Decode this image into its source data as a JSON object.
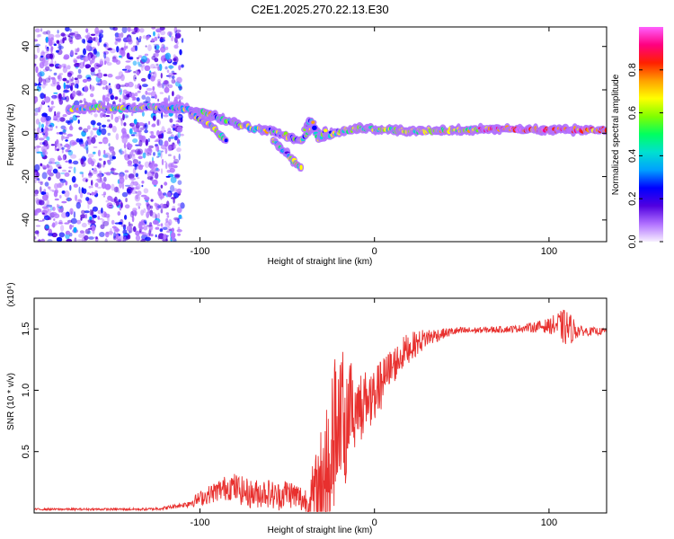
{
  "title": "C2E1.2025.270.22.13.E30",
  "chart_data": [
    {
      "type": "heatmap",
      "title": "C2E1.2025.270.22.13.E30",
      "xlabel": "Height of straight line (km)",
      "ylabel": "Frequency (Hz)",
      "xlim": [
        -195,
        133
      ],
      "ylim": [
        -50,
        49
      ],
      "x_ticks": [
        -100,
        0,
        100
      ],
      "x_tick_labels": [
        "-100",
        "0",
        "100"
      ],
      "y_ticks": [
        -40,
        -20,
        0,
        20,
        40
      ],
      "y_tick_labels": [
        "-40",
        "-20",
        "0",
        "20",
        "40"
      ],
      "noise_region_x": [
        -195,
        -110
      ],
      "ridge": {
        "x": [
          -175,
          -160,
          -145,
          -130,
          -115,
          -100,
          -88,
          -78,
          -68,
          -58,
          -48,
          -42,
          -36,
          -30,
          -24,
          -18,
          -10,
          0,
          20,
          50,
          80,
          100,
          133
        ],
        "y": [
          11,
          12,
          11,
          12,
          12,
          10,
          7,
          4,
          2,
          1,
          -2,
          -4,
          3,
          -2,
          0,
          1,
          2,
          2,
          1,
          1.5,
          2,
          1.5,
          1.5
        ]
      },
      "branches": [
        {
          "x": [
            -105,
            -95,
            -85
          ],
          "y": [
            9,
            4,
            -3
          ]
        },
        {
          "x": [
            -58,
            -52,
            -46,
            -42
          ],
          "y": [
            -3,
            -8,
            -13,
            -16
          ]
        },
        {
          "x": [
            -40,
            -36,
            -32,
            -28
          ],
          "y": [
            2,
            6,
            -3,
            1
          ]
        }
      ],
      "colorbar": {
        "label": "Normalized spectral amplitude",
        "range": [
          0,
          1
        ],
        "ticks": [
          0.0,
          0.2,
          0.4,
          0.6,
          0.8
        ],
        "tick_labels": [
          "0.0",
          "0.2",
          "0.4",
          "0.6",
          "0.8"
        ],
        "colors": [
          "#f7efff",
          "#b070ff",
          "#5000e0",
          "#0000ff",
          "#00a0ff",
          "#00e0d0",
          "#00ff60",
          "#80ff00",
          "#ffff00",
          "#ffa000",
          "#ff2000",
          "#ff0080",
          "#ff60ff"
        ]
      }
    },
    {
      "type": "line",
      "xlabel": "Height of straight line (km)",
      "ylabel": "SNR (10 * v/v)",
      "multiplier": "(x10⁴)",
      "xlim": [
        -195,
        133
      ],
      "ylim": [
        0,
        1.75
      ],
      "x_ticks": [
        -100,
        0,
        100
      ],
      "x_tick_labels": [
        "-100",
        "0",
        "100"
      ],
      "y_ticks": [
        0.5,
        1.0,
        1.5
      ],
      "y_tick_labels": [
        "0.5",
        "1.0",
        "1.5"
      ],
      "color": "#e8302e",
      "envelope": {
        "x": [
          -195,
          -130,
          -120,
          -108,
          -98,
          -90,
          -82,
          -76,
          -70,
          -62,
          -56,
          -50,
          -44,
          -38,
          -34,
          -30,
          -27,
          -24,
          -20,
          -14,
          -8,
          0,
          8,
          18,
          30,
          45,
          60,
          80,
          95,
          105,
          112,
          120,
          133
        ],
        "y": [
          0.03,
          0.03,
          0.04,
          0.07,
          0.13,
          0.18,
          0.22,
          0.18,
          0.15,
          0.17,
          0.13,
          0.17,
          0.13,
          0.08,
          0.12,
          0.25,
          0.55,
          0.75,
          0.8,
          0.88,
          0.92,
          0.98,
          1.15,
          1.33,
          1.43,
          1.48,
          1.49,
          1.5,
          1.52,
          1.53,
          1.5,
          1.48,
          1.48
        ]
      },
      "noise": {
        "x": [
          -195,
          -130,
          -110,
          -100,
          -80,
          -60,
          -40,
          -30,
          -20,
          -10,
          0,
          20,
          40,
          60,
          85,
          100,
          110,
          118,
          133
        ],
        "amp": [
          0.008,
          0.01,
          0.02,
          0.06,
          0.12,
          0.12,
          0.12,
          0.5,
          0.55,
          0.25,
          0.2,
          0.12,
          0.04,
          0.025,
          0.03,
          0.06,
          0.16,
          0.04,
          0.025
        ]
      }
    }
  ]
}
